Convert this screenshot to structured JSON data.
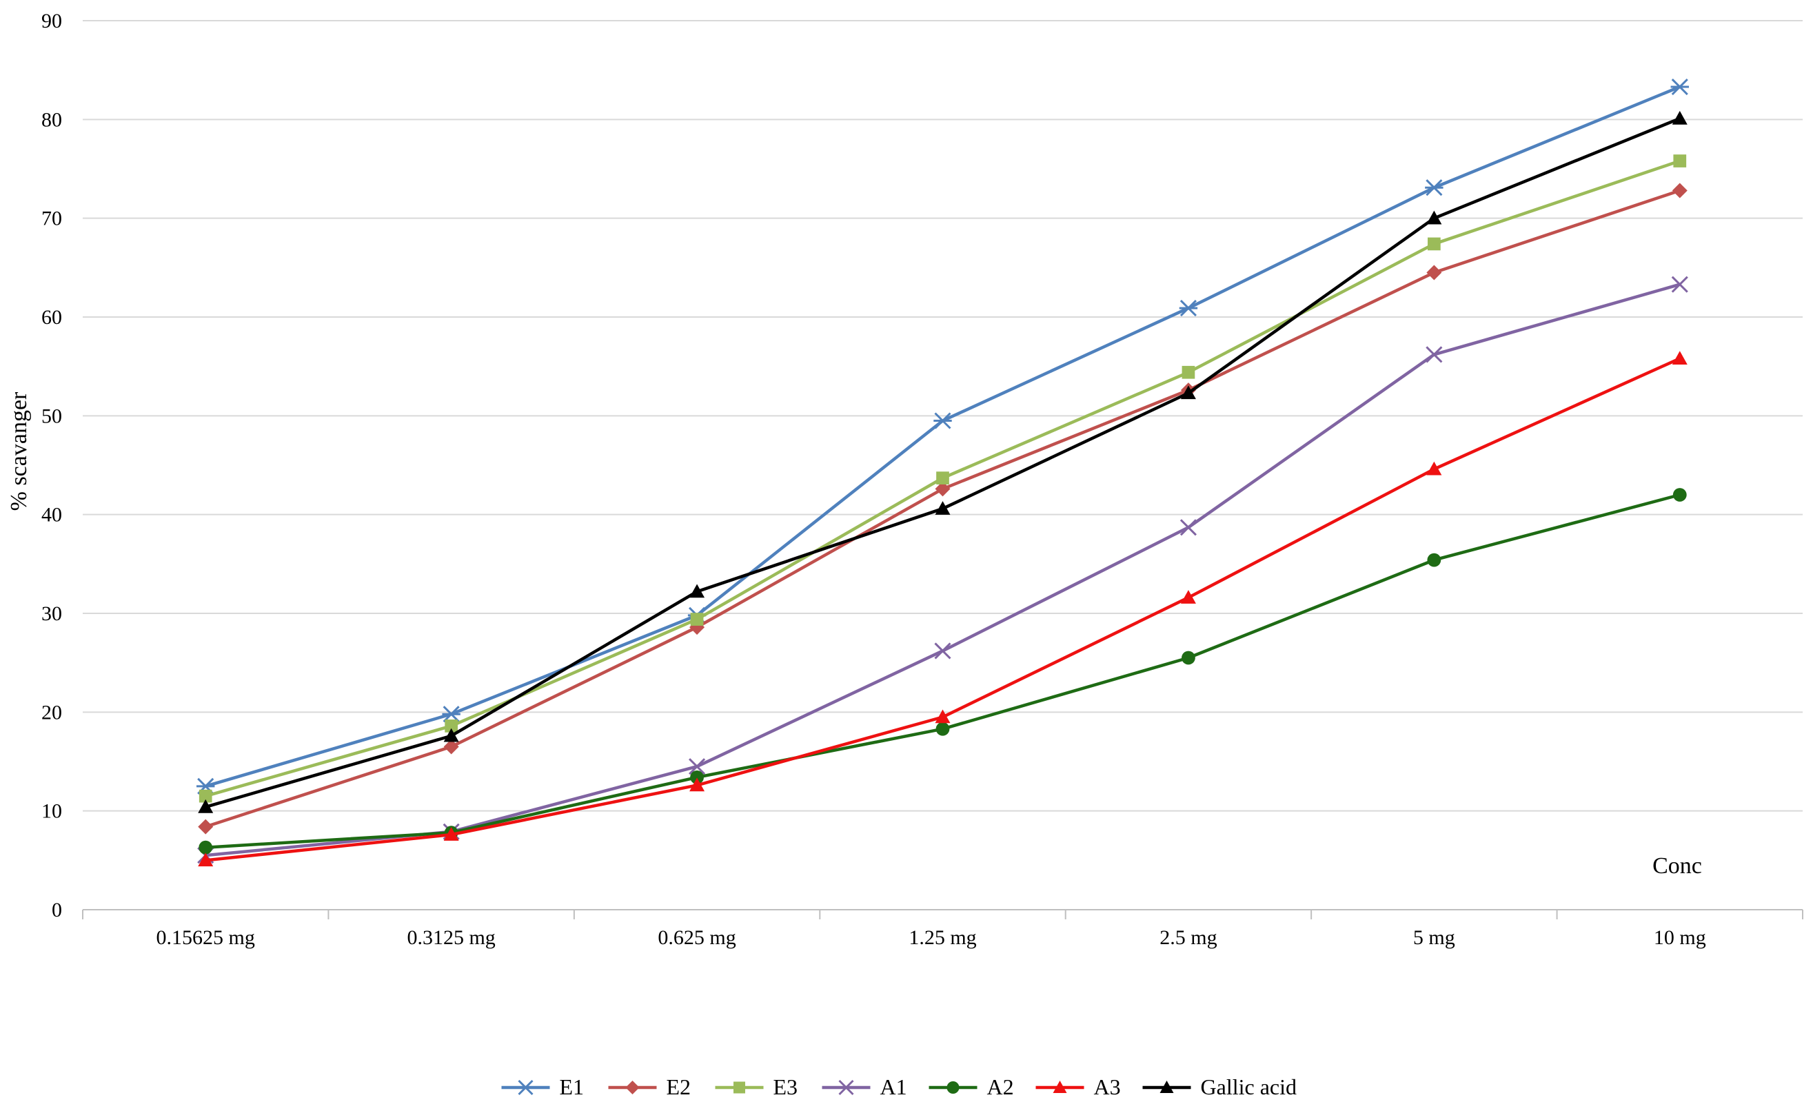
{
  "chart_data": {
    "type": "line",
    "title": "",
    "xlabel": "Conc",
    "ylabel": "% scavanger",
    "ylim": [
      0,
      90
    ],
    "yticks": [
      0,
      10,
      20,
      30,
      40,
      50,
      60,
      70,
      80,
      90
    ],
    "grid": true,
    "legend_position": "bottom",
    "categories": [
      "0.15625 mg",
      "0.3125 mg",
      "0.625 mg",
      "1.25 mg",
      "2.5 mg",
      "5 mg",
      "10 mg"
    ],
    "series": [
      {
        "name": "E1",
        "color": "#4F81BD",
        "marker": "asterisk",
        "values": [
          12.5,
          19.8,
          29.8,
          49.5,
          60.9,
          73.1,
          83.3
        ]
      },
      {
        "name": "E2",
        "color": "#C0504D",
        "marker": "diamond",
        "values": [
          8.4,
          16.5,
          28.6,
          42.6,
          52.6,
          64.5,
          72.8
        ]
      },
      {
        "name": "E3",
        "color": "#9BBB59",
        "marker": "square",
        "values": [
          11.5,
          18.6,
          29.4,
          43.7,
          54.4,
          67.4,
          75.8
        ]
      },
      {
        "name": "A1",
        "color": "#8064A2",
        "marker": "x",
        "values": [
          5.5,
          7.9,
          14.5,
          26.2,
          38.7,
          56.2,
          63.3
        ]
      },
      {
        "name": "A2",
        "color": "#1E6B14",
        "marker": "circle",
        "values": [
          6.3,
          7.8,
          13.4,
          18.3,
          25.5,
          35.4,
          42.0
        ]
      },
      {
        "name": "A3",
        "color": "#EE1111",
        "marker": "triangle",
        "values": [
          5.0,
          7.6,
          12.6,
          19.5,
          31.6,
          44.6,
          55.8
        ]
      },
      {
        "name": "Gallic acid",
        "color": "#000000",
        "marker": "triangle",
        "values": [
          10.4,
          17.6,
          32.2,
          40.6,
          52.3,
          70.0,
          80.1
        ]
      }
    ]
  }
}
